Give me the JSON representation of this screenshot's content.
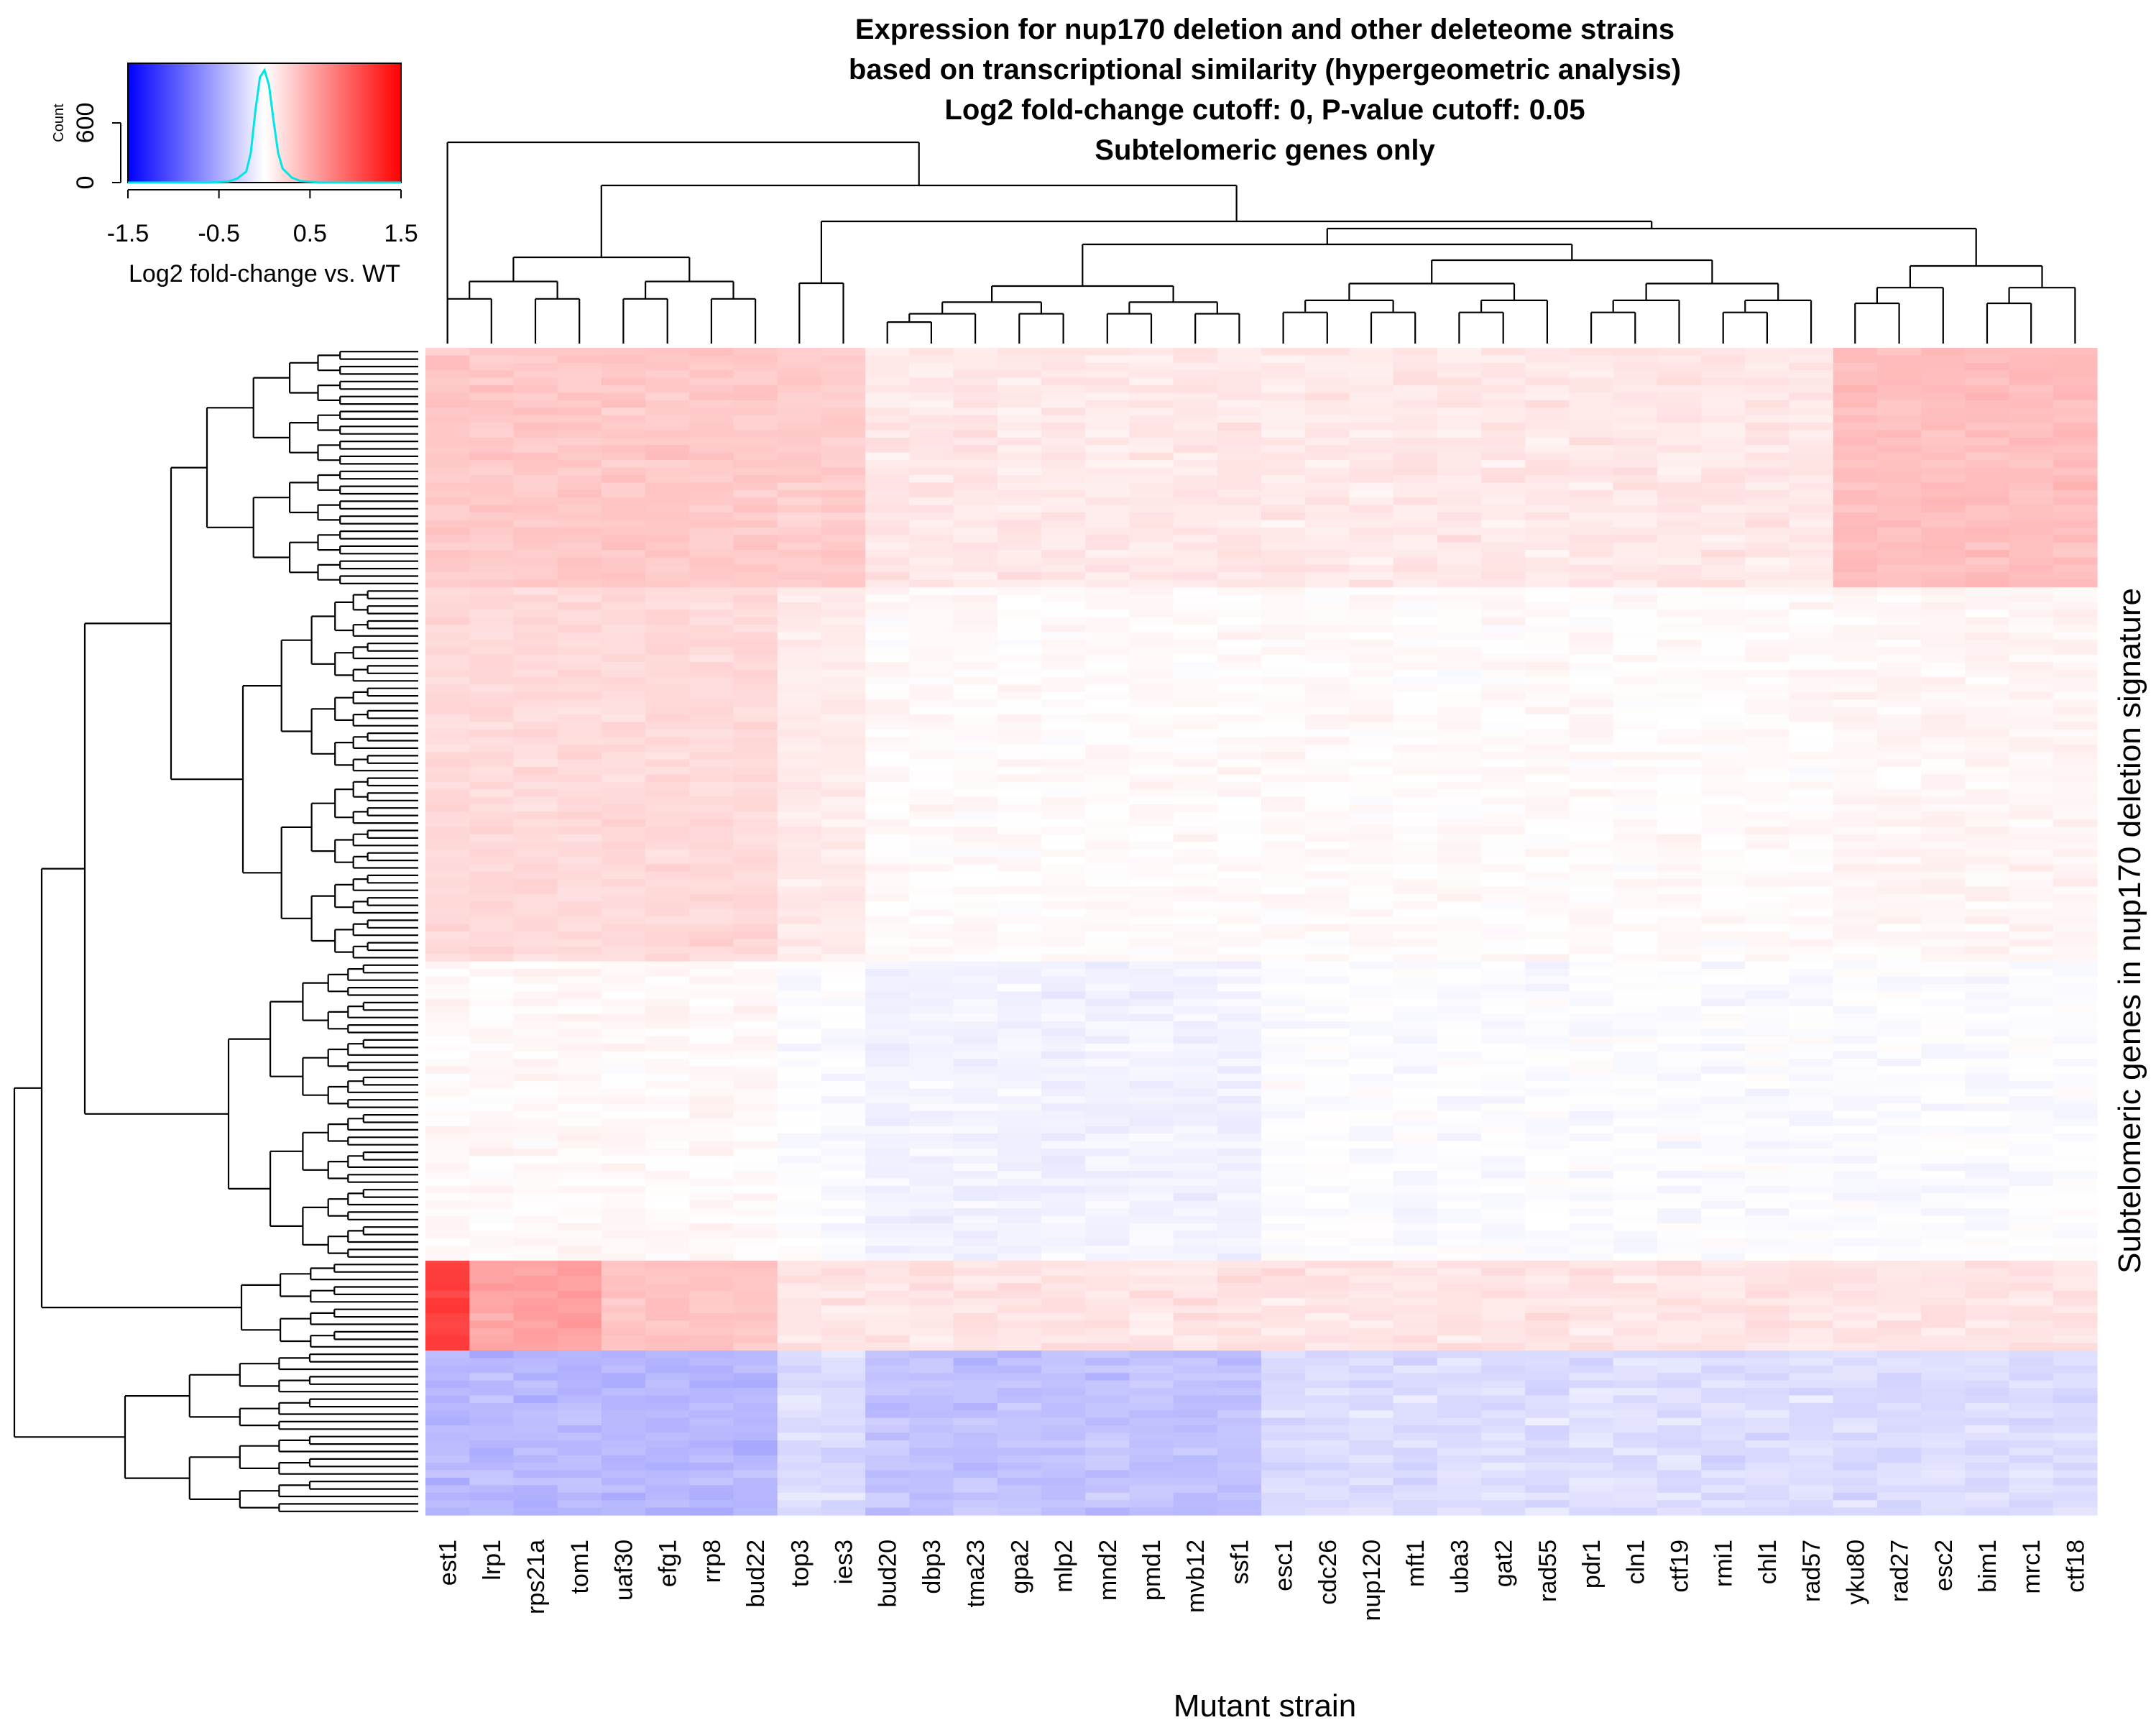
{
  "chart_data": [
    {
      "type": "heatmap",
      "title_lines": [
        "Expression for nup170 deletion and other deleteome strains",
        "based on transcriptional similarity (hypergeometric analysis)",
        "Log2 fold-change cutoff: 0, P-value cutoff: 0.05",
        "Subtelomeric genes only"
      ],
      "xlabel": "Mutant strain",
      "ylabel": "Subtelomeric genes in nup170 deletion signature",
      "columns": [
        "est1",
        "lrp1",
        "rps21a",
        "tom1",
        "uaf30",
        "efg1",
        "rrp8",
        "bud22",
        "top3",
        "ies3",
        "bud20",
        "dbp3",
        "tma23",
        "gpa2",
        "mlp2",
        "mnd2",
        "pmd1",
        "mvb12",
        "ssf1",
        "esc1",
        "cdc26",
        "nup120",
        "mft1",
        "uba3",
        "gat2",
        "rad55",
        "pdr1",
        "cln1",
        "ctf19",
        "rmi1",
        "chl1",
        "rad57",
        "yku80",
        "rad27",
        "esc2",
        "bim1",
        "mrc1",
        "ctf18"
      ],
      "column_clusters": {
        "A": [
          "est1",
          "lrp1",
          "rps21a",
          "tom1",
          "uaf30",
          "efg1",
          "rrp8",
          "bud22"
        ],
        "B": [
          "top3",
          "ies3"
        ],
        "C": [
          "bud20",
          "dbp3",
          "tma23",
          "gpa2",
          "mlp2",
          "mnd2",
          "pmd1",
          "mvb12",
          "ssf1"
        ],
        "D": [
          "esc1",
          "cdc26",
          "nup120",
          "mft1",
          "uba3",
          "gat2",
          "rad55",
          "pdr1",
          "cln1",
          "ctf19",
          "rmi1",
          "chl1",
          "rad57"
        ],
        "E": [
          "yku80",
          "rad27",
          "esc2",
          "bim1",
          "mrc1",
          "ctf18"
        ]
      },
      "row_count": 156,
      "row_blocks": [
        {
          "rows": 32,
          "pattern": "light red, strongest in clusters A and E"
        },
        {
          "rows": 50,
          "pattern": "faint red in cluster A and top3/ies3, near white elsewhere"
        },
        {
          "rows": 40,
          "pattern": "near white to faint blue"
        },
        {
          "rows": 12,
          "pattern": "strong red in est1, lrp1, rps21a, tom1; moderate red elsewhere"
        },
        {
          "rows": 22,
          "pattern": "blue, strongest in clusters A and C"
        }
      ],
      "color_scale": {
        "low": -1.5,
        "mid": 0,
        "high": 1.5,
        "low_color": "#0000ff",
        "mid_color": "#ffffff",
        "high_color": "#ff0000"
      }
    },
    {
      "type": "histogram",
      "name": "color key",
      "xlabel": "Log2 fold-change vs. WT",
      "ylabel": "Count",
      "xticks": [
        "-1.5",
        "-0.5",
        "0.5",
        "1.5"
      ],
      "yticks": [
        "0",
        "600"
      ],
      "xlim": [
        -1.5,
        1.5
      ],
      "ylim": [
        0,
        1200
      ],
      "density_color": "#00e5e5",
      "density": {
        "x": [
          -1.5,
          -0.6,
          -0.4,
          -0.3,
          -0.2,
          -0.15,
          -0.1,
          -0.05,
          0.0,
          0.05,
          0.1,
          0.15,
          0.2,
          0.3,
          0.4,
          0.6,
          1.5
        ],
        "y": [
          0,
          0,
          10,
          40,
          110,
          300,
          720,
          1060,
          1130,
          980,
          620,
          300,
          140,
          50,
          15,
          0,
          0
        ]
      }
    }
  ]
}
